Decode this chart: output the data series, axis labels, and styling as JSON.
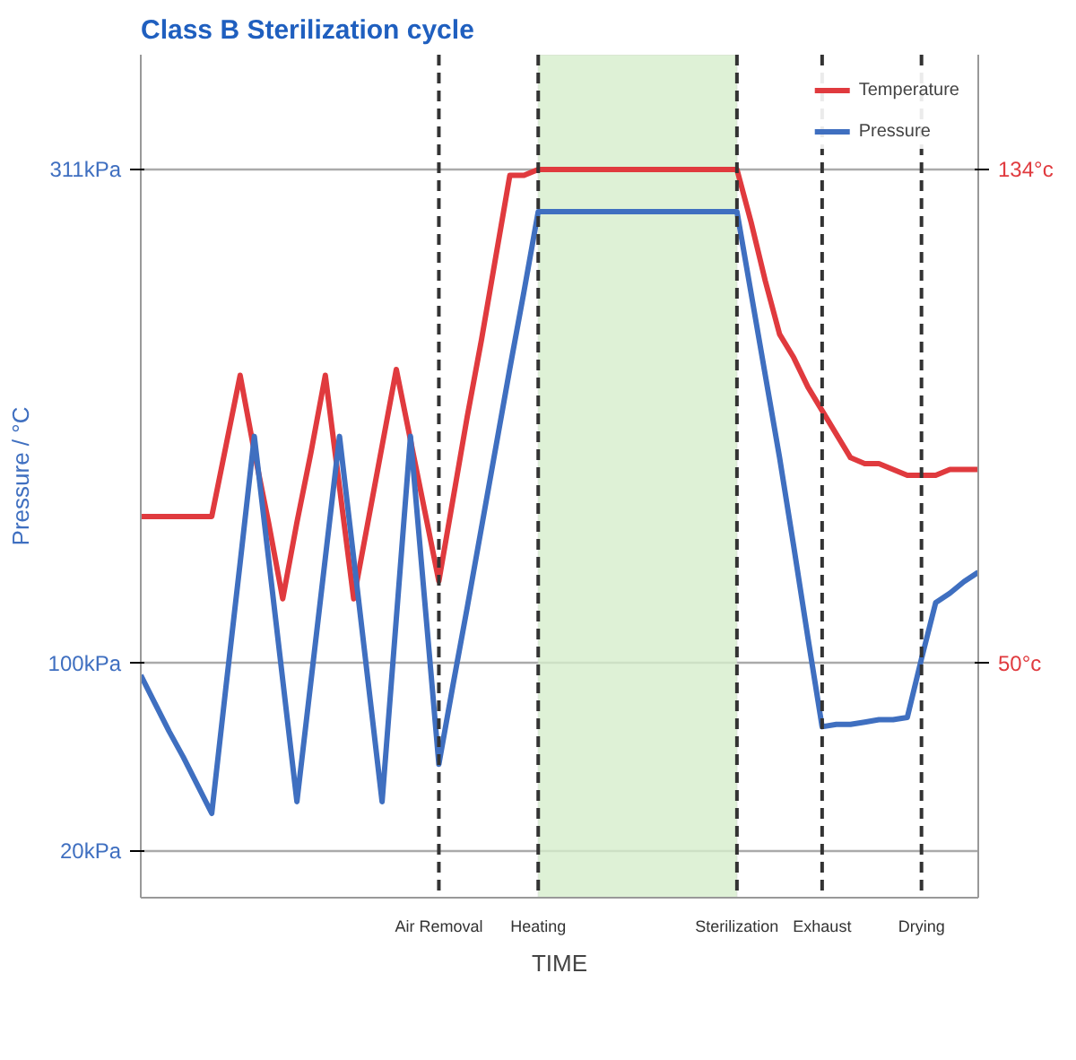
{
  "chart_data": {
    "type": "line",
    "title": "Class B Sterilization cycle",
    "ylabel": "Pressure / °C",
    "xlabel": "TIME",
    "categories": [
      null,
      null,
      null,
      null,
      null,
      null,
      null,
      null,
      null,
      null,
      null,
      null,
      null,
      null,
      null,
      null,
      null,
      null,
      null,
      null,
      null,
      "Air Removal",
      null,
      null,
      null,
      null,
      null,
      null,
      "Heating",
      null,
      null,
      null,
      null,
      null,
      null,
      null,
      null,
      null,
      null,
      null,
      null,
      null,
      "Sterilization",
      null,
      null,
      null,
      null,
      null,
      "Exhaust",
      null,
      null,
      null,
      null,
      null,
      null,
      "Drying",
      null,
      null,
      null,
      null
    ],
    "ylim": [
      0,
      360
    ],
    "yticks": [
      {
        "value": 20,
        "label": "20kPa"
      },
      {
        "value": 100,
        "label": "100kPa"
      },
      {
        "value": 311,
        "label": "311kPa"
      }
    ],
    "y2lim": [
      10.2,
      153.5
    ],
    "y2ticks": [
      {
        "value": 50,
        "label": "50°c"
      },
      {
        "value": 134,
        "label": "134°c"
      }
    ],
    "grid": "y",
    "legend": "top right",
    "marker": "none",
    "line_style": "solid",
    "series": [
      {
        "name": "Temperature",
        "color": "#e03a3e",
        "axis": "y2",
        "values": [
          75,
          75,
          75,
          75,
          75,
          75,
          87,
          99,
          86,
          74,
          61,
          74,
          86,
          99,
          80,
          61,
          74,
          87,
          100,
          88,
          76,
          64,
          78,
          92,
          105,
          119,
          133,
          133,
          134,
          134,
          134,
          134,
          134,
          134,
          134,
          134,
          134,
          134,
          134,
          134,
          134,
          134,
          134,
          125,
          115,
          106,
          102,
          97,
          93,
          89,
          85,
          84,
          84,
          83,
          82,
          82,
          82,
          83,
          83,
          83
        ]
      },
      {
        "name": "Pressure",
        "color": "#3f6fc0",
        "values": [
          95,
          83,
          71,
          60,
          48,
          36,
          90,
          143,
          197,
          145,
          93,
          41,
          93,
          145,
          197,
          145,
          93,
          41,
          119,
          197,
          127,
          57,
          91,
          124,
          158,
          192,
          226,
          259,
          293,
          293,
          293,
          293,
          293,
          293,
          293,
          293,
          293,
          293,
          293,
          293,
          293,
          293,
          293,
          258,
          223,
          188,
          150,
          111,
          73,
          74,
          74,
          75,
          76,
          76,
          77,
          102,
          126,
          130,
          135,
          139
        ]
      }
    ],
    "bands": [
      {
        "axis": "x",
        "from": "Heating",
        "to": "Sterilization",
        "color": "#d6edcc"
      }
    ],
    "ref_lines": [
      {
        "axis": "x",
        "value": "Air Removal",
        "line_style": "dashed"
      },
      {
        "axis": "x",
        "value": "Heating",
        "line_style": "dashed"
      },
      {
        "axis": "x",
        "value": "Sterilization",
        "line_style": "dashed"
      },
      {
        "axis": "x",
        "value": "Exhaust",
        "line_style": "dashed"
      },
      {
        "axis": "x",
        "value": "Drying",
        "line_style": "dashed"
      }
    ]
  }
}
